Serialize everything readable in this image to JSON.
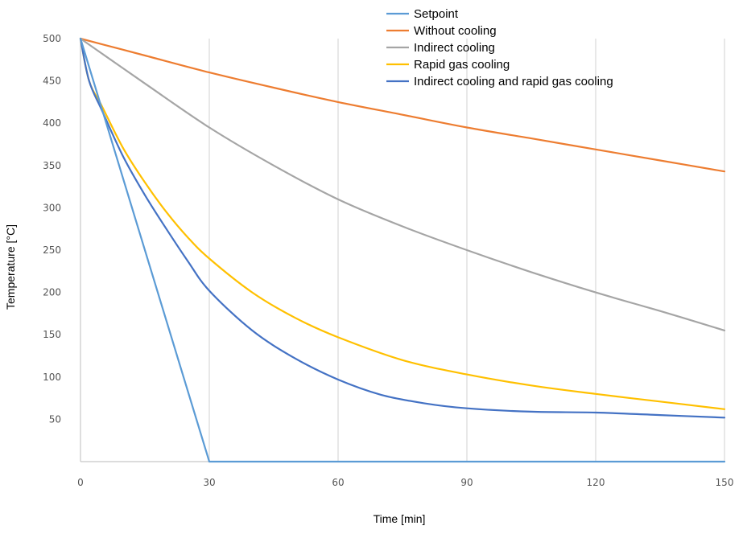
{
  "chart_data": {
    "type": "line",
    "title": "",
    "xlabel": "Time [min]",
    "ylabel": "Temperature [°C]",
    "xlim": [
      0,
      150
    ],
    "ylim": [
      0,
      500
    ],
    "x_ticks": [
      0,
      30,
      60,
      90,
      120,
      150
    ],
    "x_tick_labels": [
      "0",
      "30",
      "60",
      "90",
      "120",
      "150"
    ],
    "y_ticks": [
      50,
      100,
      150,
      200,
      250,
      300,
      350,
      400,
      450,
      500
    ],
    "y_tick_labels": [
      "50",
      "100",
      "150",
      "200",
      "250",
      "300",
      "350",
      "400",
      "450",
      "500"
    ],
    "grid": "vertical",
    "legend_position": "top-center",
    "series": [
      {
        "name": "Setpoint",
        "color": "#5b9bd5",
        "x": [
          0,
          30,
          150
        ],
        "y": [
          500,
          0,
          0
        ]
      },
      {
        "name": "Without cooling",
        "color": "#ed7d31",
        "x": [
          0,
          15,
          30,
          45,
          60,
          75,
          90,
          105,
          120,
          135,
          150
        ],
        "y": [
          500,
          480,
          460,
          442,
          425,
          410,
          395,
          382,
          369,
          356,
          343
        ]
      },
      {
        "name": "Indirect cooling",
        "color": "#a5a5a5",
        "x": [
          0,
          15,
          30,
          45,
          60,
          75,
          90,
          105,
          120,
          135,
          150
        ],
        "y": [
          500,
          447,
          395,
          350,
          310,
          278,
          250,
          224,
          200,
          178,
          155
        ]
      },
      {
        "name": "Rapid gas cooling",
        "color": "#ffc000",
        "x": [
          0,
          2,
          5,
          10,
          15,
          20,
          25,
          30,
          40,
          50,
          60,
          75,
          90,
          105,
          120,
          135,
          150
        ],
        "y": [
          500,
          450,
          420,
          370,
          330,
          295,
          265,
          240,
          200,
          170,
          147,
          120,
          103,
          90,
          80,
          71,
          62
        ],
        "name_color": "#ffc000"
      },
      {
        "name": "Indirect cooling and rapid gas cooling",
        "color": "#4472c4",
        "x": [
          0,
          2,
          5,
          10,
          15,
          20,
          25,
          30,
          40,
          50,
          60,
          70,
          80,
          90,
          105,
          120,
          135,
          150
        ],
        "y": [
          500,
          450,
          415,
          360,
          315,
          275,
          237,
          202,
          155,
          122,
          97,
          79,
          69,
          63,
          59,
          58,
          55,
          52
        ]
      }
    ]
  }
}
